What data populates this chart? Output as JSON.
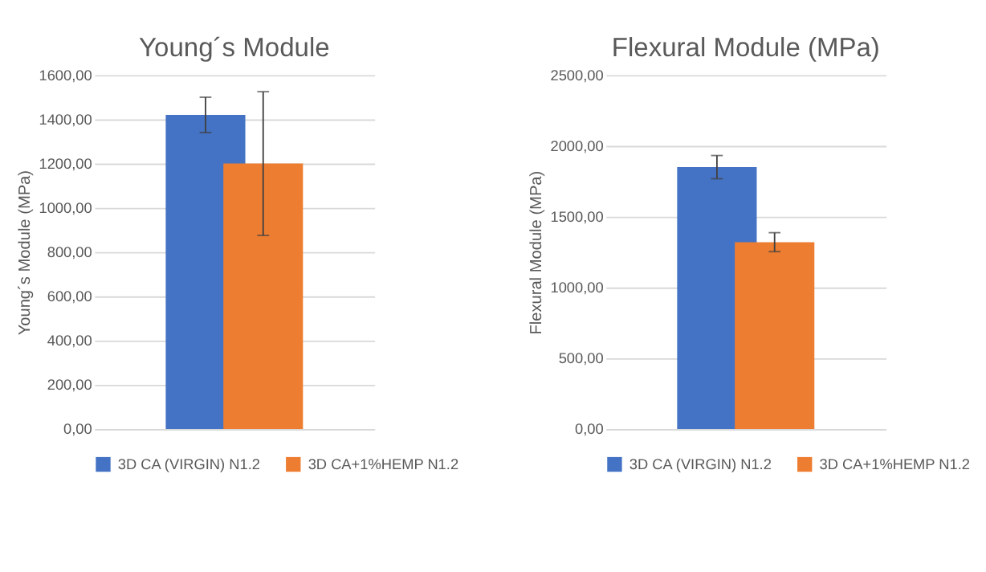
{
  "chart_data": [
    {
      "type": "bar",
      "title": "Young´s Module",
      "ylabel": "Young´s Module (MPa)",
      "categories": [
        null
      ],
      "series": [
        {
          "name": "3D CA (VIRGIN) N1.2",
          "color": "#4472c4",
          "values": [
            1420
          ],
          "errors": [
            80
          ]
        },
        {
          "name": "3D CA+1%HEMP N1.2",
          "color": "#ed7d31",
          "values": [
            1200
          ],
          "errors": [
            325
          ]
        }
      ],
      "ylim": [
        0,
        1600
      ],
      "yticks": [
        {
          "value": 0,
          "label": "0,00"
        },
        {
          "value": 200,
          "label": "200,00"
        },
        {
          "value": 400,
          "label": "400,00"
        },
        {
          "value": 600,
          "label": "600,00"
        },
        {
          "value": 800,
          "label": "800,00"
        },
        {
          "value": 1000,
          "label": "1000,00"
        },
        {
          "value": 1200,
          "label": "1200,00"
        },
        {
          "value": 1400,
          "label": "1400,00"
        },
        {
          "value": 1600,
          "label": "1600,00"
        }
      ],
      "grid": "y",
      "legend": "bottom",
      "tick_labels": "y"
    },
    {
      "type": "bar",
      "title": "Flexural Module (MPa)",
      "ylabel": "Flexural Module (MPa)",
      "categories": [
        null
      ],
      "series": [
        {
          "name": "3D CA (VIRGIN) N1.2",
          "color": "#4472c4",
          "values": [
            1850
          ],
          "errors": [
            82
          ]
        },
        {
          "name": "3D CA+1%HEMP N1.2",
          "color": "#ed7d31",
          "values": [
            1320
          ],
          "errors": [
            67
          ]
        }
      ],
      "ylim": [
        0,
        2500
      ],
      "yticks": [
        {
          "value": 0,
          "label": "0,00"
        },
        {
          "value": 500,
          "label": "500,00"
        },
        {
          "value": 1000,
          "label": "1000,00"
        },
        {
          "value": 1500,
          "label": "1500,00"
        },
        {
          "value": 2000,
          "label": "2000,00"
        },
        {
          "value": 2500,
          "label": "2500,00"
        }
      ],
      "grid": "y",
      "legend": "bottom",
      "tick_labels": "y"
    }
  ]
}
